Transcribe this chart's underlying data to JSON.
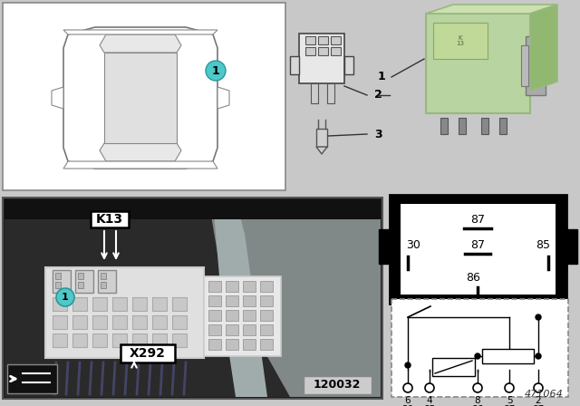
{
  "bg_color": "#c8c8c8",
  "teal": "#4ec8c8",
  "green_relay": "#b8d4a0",
  "green_relay_dark": "#98b880",
  "white": "#ffffff",
  "black": "#000000",
  "photo_bg": "#2a3038",
  "pillar_color": "#8a9090",
  "fusebox_color": "#d8d8d0",
  "diagram_id": "471064",
  "photo_label": "120032",
  "k13_label": "K13",
  "x292_label": "X292",
  "item1": "1",
  "item2": "2",
  "item3": "3"
}
